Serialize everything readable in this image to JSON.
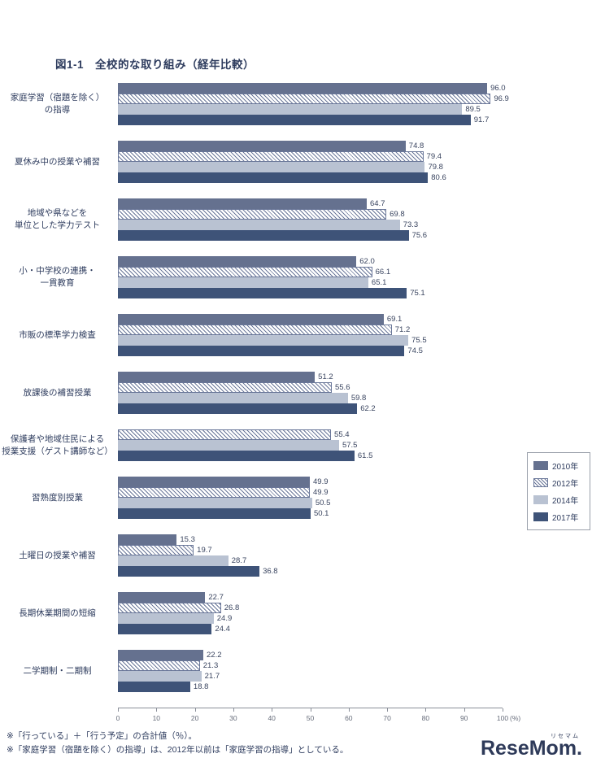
{
  "chart_data": {
    "type": "bar",
    "orientation": "horizontal",
    "title": "図1-1　全校的な取り組み（経年比較）",
    "xlim": [
      0,
      100
    ],
    "x_ticks": [
      0,
      10,
      20,
      30,
      40,
      50,
      60,
      70,
      80,
      90,
      100
    ],
    "x_unit_label": "(%)",
    "grid": false,
    "legend_position": "right",
    "categories": [
      [
        "家庭学習（宿題を除く）",
        "の指導"
      ],
      [
        "夏休み中の授業や補習"
      ],
      [
        "地域や県などを",
        "単位とした学力テスト"
      ],
      [
        "小・中学校の連携・",
        "一貫教育"
      ],
      [
        "市販の標準学力検査"
      ],
      [
        "放課後の補習授業"
      ],
      [
        "保護者や地域住民による",
        "授業支援（ゲスト講師など）"
      ],
      [
        "習熟度別授業"
      ],
      [
        "土曜日の授業や補習"
      ],
      [
        "長期休業期間の短縮"
      ],
      [
        "二学期制・二期制"
      ]
    ],
    "series": [
      {
        "name": "2010年",
        "key": "y2010",
        "color": "#65718f",
        "pattern": "solid",
        "values": [
          96.0,
          74.8,
          64.7,
          62.0,
          69.1,
          51.2,
          null,
          49.9,
          15.3,
          22.7,
          22.2
        ]
      },
      {
        "name": "2012年",
        "key": "y2012",
        "color": "#6a7799",
        "pattern": "hatch",
        "values": [
          96.9,
          79.4,
          69.8,
          66.1,
          71.2,
          55.6,
          55.4,
          49.9,
          19.7,
          26.8,
          21.3
        ]
      },
      {
        "name": "2014年",
        "key": "y2014",
        "color": "#b9c2d2",
        "pattern": "solid",
        "values": [
          89.5,
          79.8,
          73.3,
          65.1,
          75.5,
          59.8,
          57.5,
          50.5,
          28.7,
          24.9,
          21.7
        ]
      },
      {
        "name": "2017年",
        "key": "y2017",
        "color": "#3e5378",
        "pattern": "solid",
        "values": [
          91.7,
          80.6,
          75.6,
          75.1,
          74.5,
          62.2,
          61.5,
          50.1,
          36.8,
          24.4,
          18.8
        ]
      }
    ]
  },
  "footnotes": [
    "※「行っている」＋「行う予定」の合計値（％）。",
    "※「家庭学習（宿題を除く）の指導」は、2012年以前は「家庭学習の指導」としている。"
  ],
  "logo": {
    "text": "ReseMom.",
    "ruby": "リセマム"
  }
}
